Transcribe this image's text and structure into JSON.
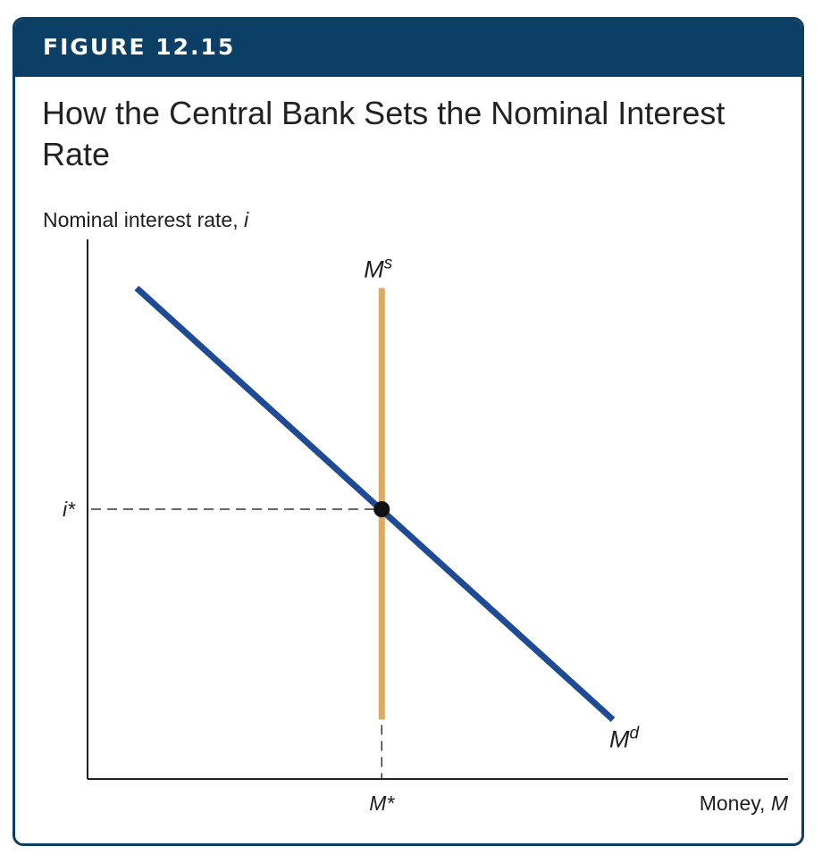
{
  "figure_label": "FIGURE 12.15",
  "title": "How the Central Bank Sets the Nominal Interest Rate",
  "colors": {
    "banner": "#0c3f66",
    "money_demand": "#1f4a94",
    "money_supply": "#dbaa63",
    "equilibrium": "#111111"
  },
  "chart_data": {
    "type": "line",
    "ylabel": {
      "text": "Nominal interest rate, ",
      "var": "i"
    },
    "xlabel": {
      "text": "Money, ",
      "var": "M"
    },
    "xlim": [
      0,
      100
    ],
    "ylim": [
      0,
      100
    ],
    "series": [
      {
        "name": "Md",
        "label_base": "M",
        "label_sup": "d",
        "points": [
          [
            7,
            91
          ],
          [
            75,
            11
          ]
        ]
      },
      {
        "name": "Ms",
        "label_base": "M",
        "label_sup": "s",
        "points": [
          [
            42,
            91
          ],
          [
            42,
            11
          ]
        ]
      }
    ],
    "equilibrium": {
      "x": 42,
      "y": 50,
      "x_label": "M*",
      "y_label": "i*"
    }
  }
}
